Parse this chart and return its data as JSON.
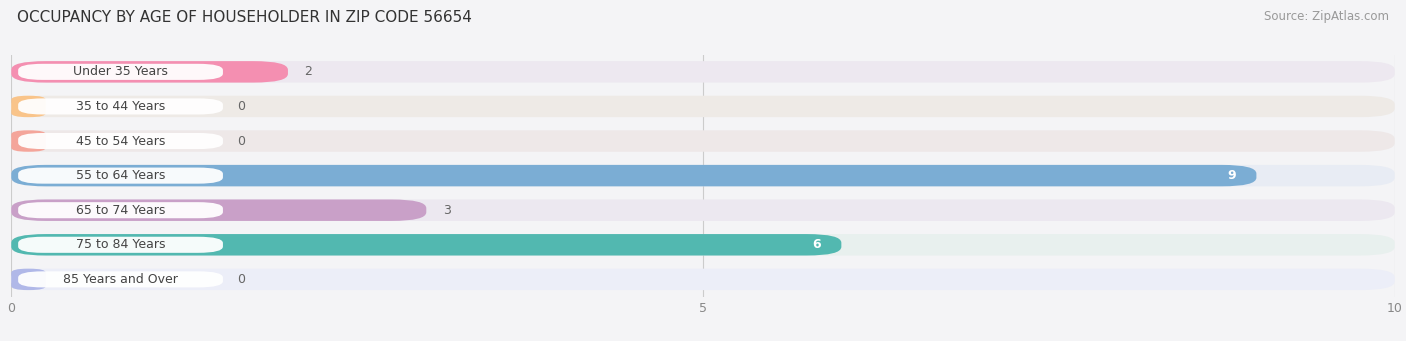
{
  "title": "OCCUPANCY BY AGE OF HOUSEHOLDER IN ZIP CODE 56654",
  "source": "Source: ZipAtlas.com",
  "categories": [
    "Under 35 Years",
    "35 to 44 Years",
    "45 to 54 Years",
    "55 to 64 Years",
    "65 to 74 Years",
    "75 to 84 Years",
    "85 Years and Over"
  ],
  "values": [
    2,
    0,
    0,
    9,
    3,
    6,
    0
  ],
  "bar_colors": [
    "#f48fb1",
    "#f9c48a",
    "#f4a59a",
    "#7badd4",
    "#c9a0c8",
    "#52b8b0",
    "#b0b8e8"
  ],
  "bar_bg_colors": [
    "#ede8f0",
    "#eeeae6",
    "#eee8e8",
    "#e8ecf4",
    "#ece8f0",
    "#e8f0ee",
    "#eceef8"
  ],
  "xlim": [
    0,
    10
  ],
  "xticks": [
    0,
    5,
    10
  ],
  "background_color": "#f4f4f6",
  "title_fontsize": 11,
  "source_fontsize": 8.5,
  "label_fontsize": 9,
  "value_fontsize": 9
}
